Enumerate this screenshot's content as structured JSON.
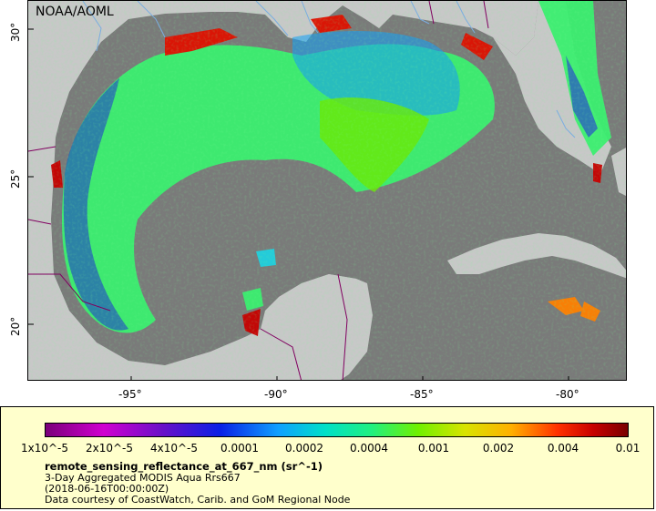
{
  "map": {
    "credit": "NOAA/AOML",
    "lat_labels": [
      "30°",
      "25°",
      "20°"
    ],
    "lon_labels": [
      "-95°",
      "-90°",
      "-85°",
      "-80°"
    ],
    "colors": {
      "ocean": "#7a7a7a",
      "land": "#c8c8c8",
      "river": "#7aaee0",
      "border": "#800060"
    }
  },
  "legend": {
    "ticks": [
      "1x10^-5",
      "2x10^-5",
      "4x10^-5",
      "0.0001",
      "0.0002",
      "0.0004",
      "0.001",
      "0.002",
      "0.004",
      "0.01"
    ],
    "variable": "remote_sensing_reflectance_at_667_nm (sr^-1)",
    "product": "3-Day Aggregated MODIS Aqua Rrs667",
    "time": "(2018-06-16T00:00:00Z)",
    "courtesy": "Data courtesy of CoastWatch, Carib. and GoM Regional Node"
  }
}
